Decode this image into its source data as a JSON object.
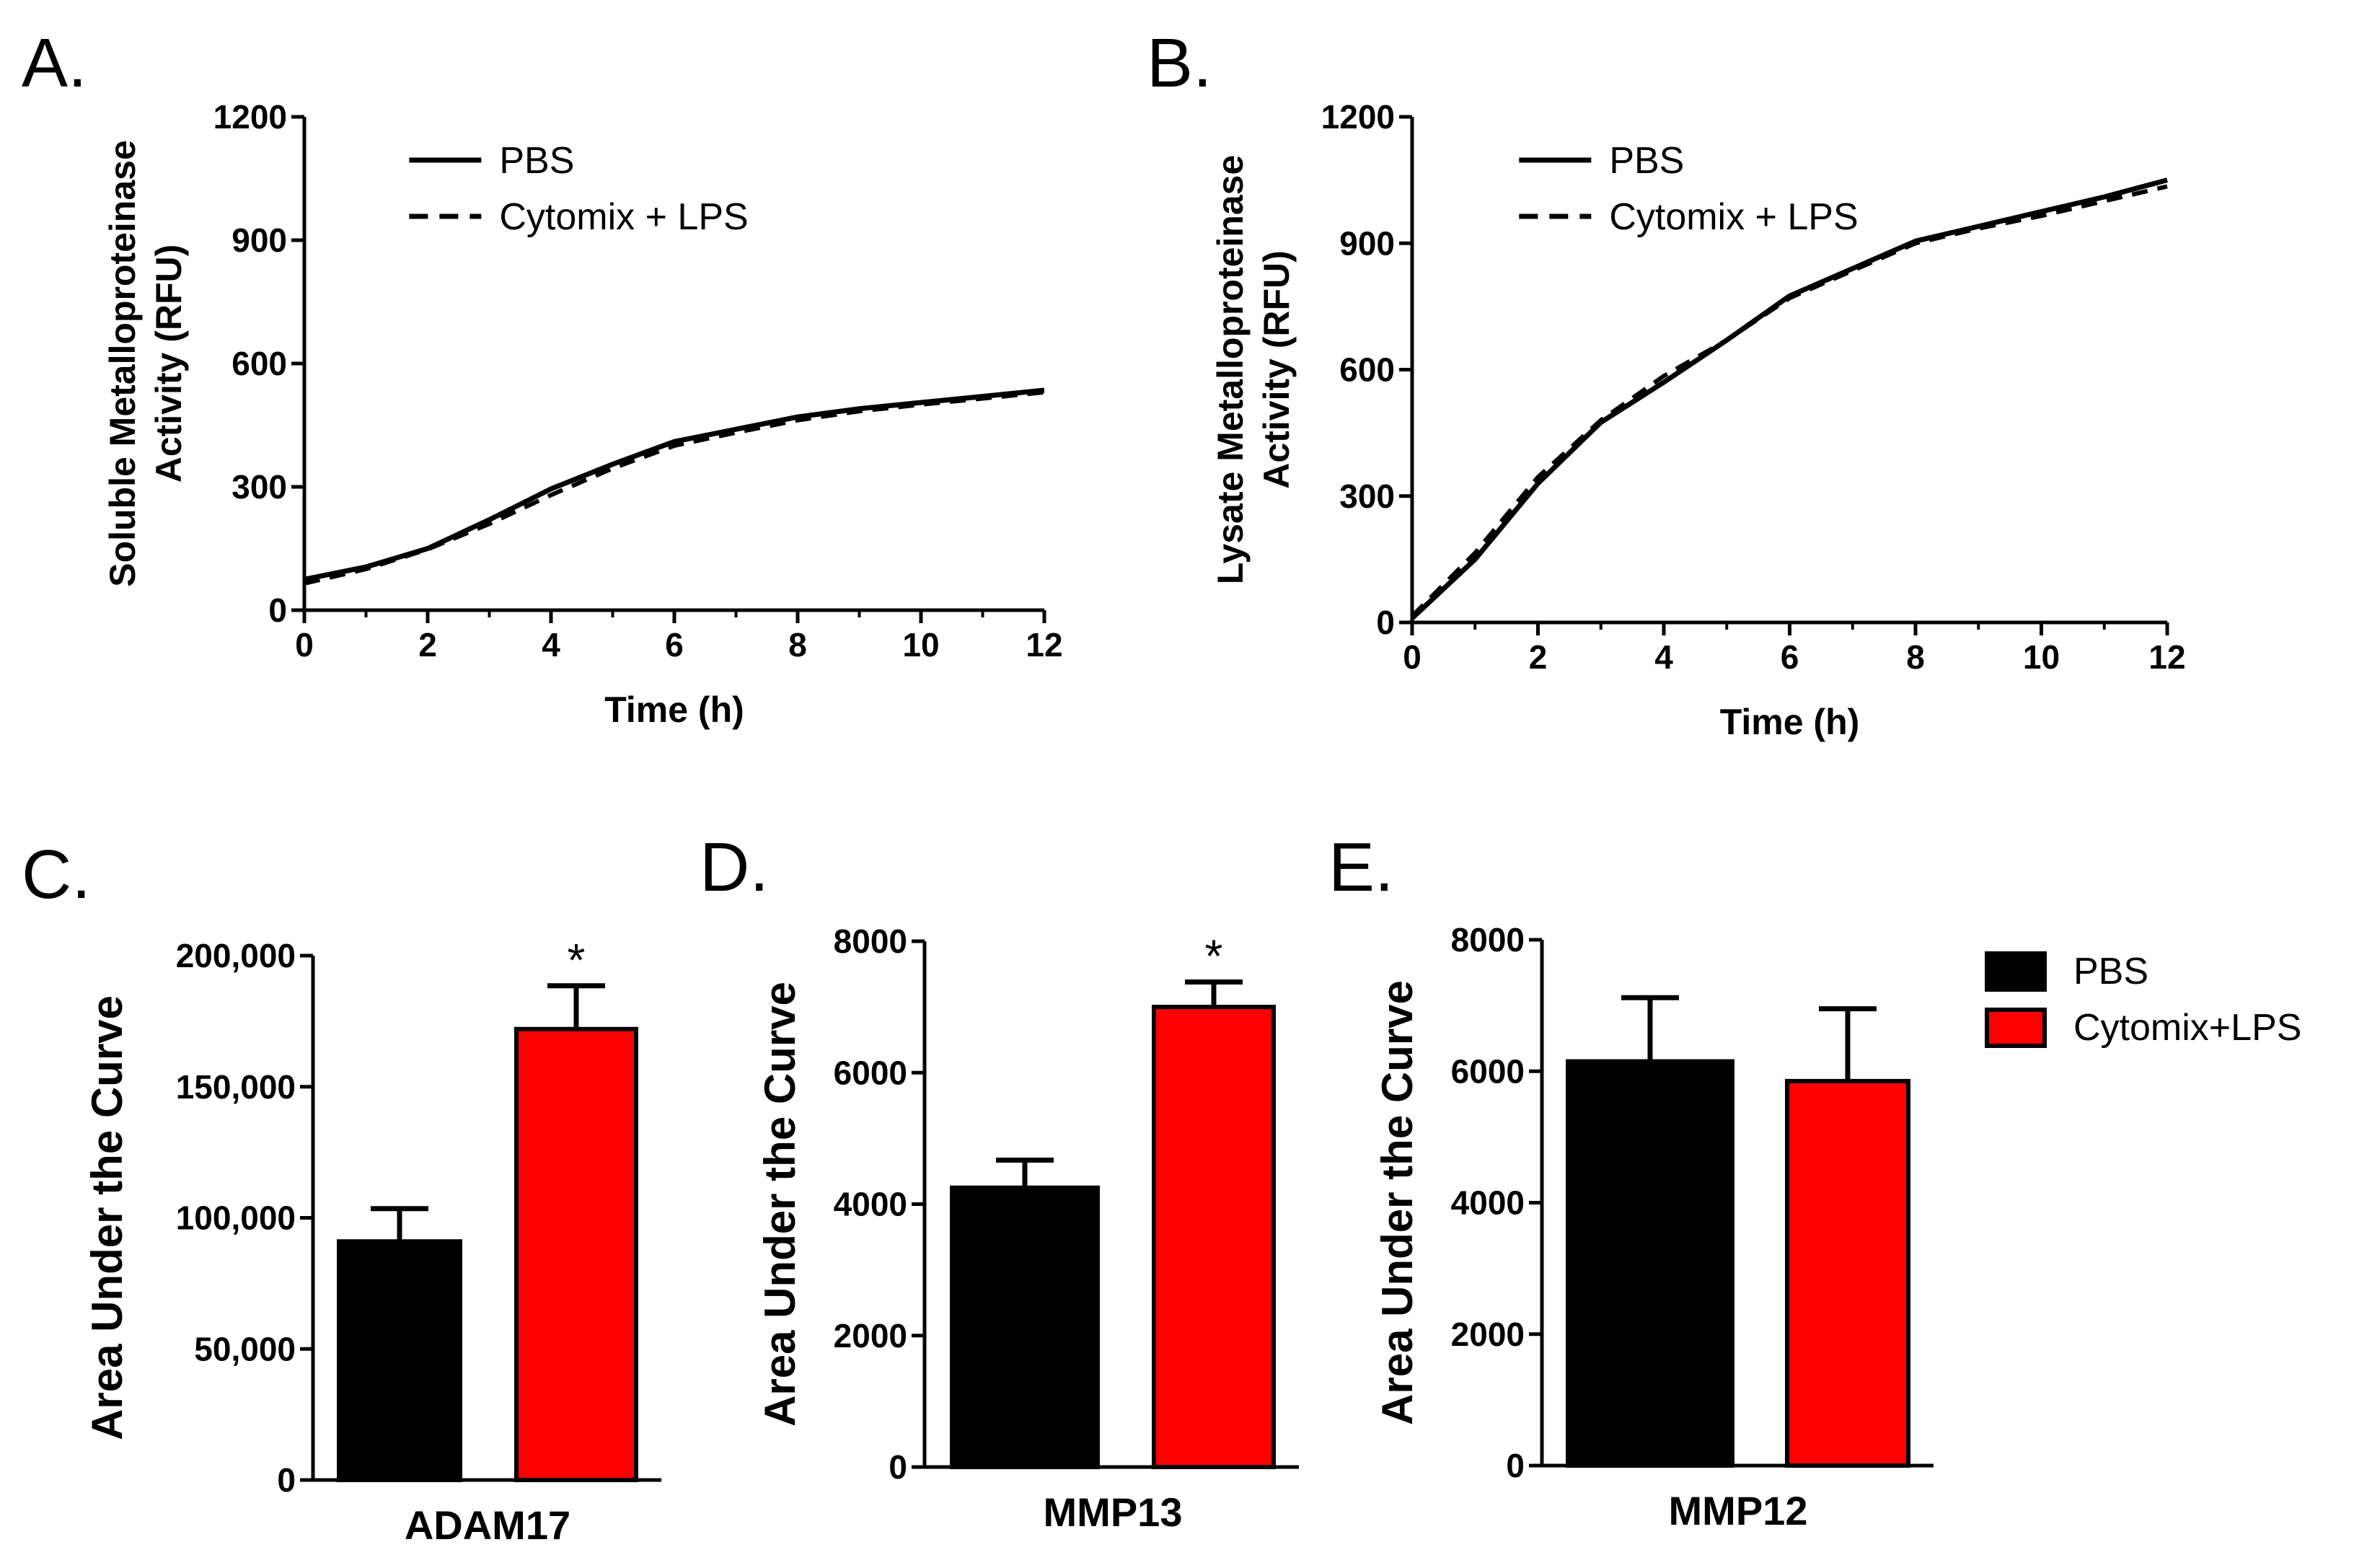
{
  "chart_data": [
    {
      "panel": "A.",
      "type": "line",
      "xlabel": "Time (h)",
      "ylabel_lines": [
        "Soluble Metalloproteinase",
        "Activity (RFU)"
      ],
      "xlim": [
        0,
        12
      ],
      "ylim": [
        0,
        1200
      ],
      "xticks": [
        0,
        2,
        4,
        6,
        8,
        10,
        12
      ],
      "yticks": [
        0,
        300,
        600,
        900,
        1200
      ],
      "legend": [
        "PBS",
        "Cytomix + LPS"
      ],
      "series": [
        {
          "name": "PBS",
          "style": "solid",
          "x": [
            0,
            1,
            2,
            3,
            4,
            5,
            6,
            7,
            8,
            9,
            10,
            11,
            12
          ],
          "values": [
            75,
            105,
            150,
            220,
            295,
            355,
            410,
            440,
            470,
            490,
            505,
            520,
            535
          ]
        },
        {
          "name": "Cytomix + LPS",
          "style": "dashed",
          "x": [
            0,
            1,
            2,
            3,
            4,
            5,
            6,
            7,
            8,
            9,
            10,
            11,
            12
          ],
          "values": [
            65,
            100,
            148,
            210,
            280,
            345,
            400,
            432,
            462,
            484,
            500,
            515,
            530
          ]
        }
      ]
    },
    {
      "panel": "B.",
      "type": "line",
      "xlabel": "Time (h)",
      "ylabel_lines": [
        "Lysate Metalloproteinase",
        "Activity (RFU)"
      ],
      "xlim": [
        0,
        12
      ],
      "ylim": [
        0,
        1200
      ],
      "xticks": [
        0,
        2,
        4,
        6,
        8,
        10,
        12
      ],
      "yticks": [
        0,
        300,
        600,
        900,
        1200
      ],
      "legend": [
        "PBS",
        "Cytomix + LPS"
      ],
      "series": [
        {
          "name": "PBS",
          "style": "solid",
          "x": [
            0,
            1,
            2,
            3,
            4,
            5,
            6,
            7,
            8,
            9,
            10,
            11,
            12
          ],
          "values": [
            10,
            150,
            330,
            475,
            570,
            670,
            775,
            840,
            905,
            940,
            975,
            1010,
            1050
          ]
        },
        {
          "name": "Cytomix + LPS",
          "style": "dashed",
          "x": [
            0,
            1,
            2,
            3,
            4,
            5,
            6,
            7,
            8,
            9,
            10,
            11,
            12
          ],
          "values": [
            15,
            165,
            345,
            480,
            585,
            670,
            770,
            835,
            900,
            935,
            965,
            1000,
            1035
          ]
        }
      ]
    },
    {
      "panel": "C.",
      "type": "bar",
      "categories": [
        "PBS",
        "Cytomix+LPS"
      ],
      "xlabel": "ADAM17",
      "ylabel": "Area Under the Curve",
      "ylim": [
        0,
        200000
      ],
      "yticks": [
        0,
        50000,
        100000,
        150000,
        200000
      ],
      "ytick_labels": [
        "0",
        "50,000",
        "100,000",
        "150,000",
        "200,000"
      ],
      "values": [
        91000,
        172000
      ],
      "errors": [
        12500,
        16500
      ],
      "significance": [
        "",
        "*"
      ]
    },
    {
      "panel": "D.",
      "type": "bar",
      "categories": [
        "PBS",
        "Cytomix+LPS"
      ],
      "xlabel": "MMP13",
      "ylabel": "Area Under the Curve",
      "ylim": [
        0,
        8000
      ],
      "yticks": [
        0,
        2000,
        4000,
        6000,
        8000
      ],
      "ytick_labels": [
        "0",
        "2000",
        "4000",
        "6000",
        "8000"
      ],
      "values": [
        4250,
        7000
      ],
      "errors": [
        420,
        380
      ],
      "significance": [
        "",
        "*"
      ]
    },
    {
      "panel": "E.",
      "type": "bar",
      "categories": [
        "PBS",
        "Cytomix+LPS"
      ],
      "xlabel": "MMP12",
      "ylabel": "Area Under the Curve",
      "ylim": [
        0,
        8000
      ],
      "yticks": [
        0,
        2000,
        4000,
        6000,
        8000
      ],
      "ytick_labels": [
        "0",
        "2000",
        "4000",
        "6000",
        "8000"
      ],
      "values": [
        6150,
        5850
      ],
      "errors": [
        970,
        1100
      ],
      "significance": [
        "",
        ""
      ]
    }
  ],
  "bar_legend": {
    "items": [
      {
        "label": "PBS",
        "color": "#000000"
      },
      {
        "label": "Cytomix+LPS",
        "color": "#ff0000"
      }
    ]
  },
  "colors": {
    "pbs": "#000000",
    "cytomix": "#ff0000",
    "axis": "#000000"
  }
}
